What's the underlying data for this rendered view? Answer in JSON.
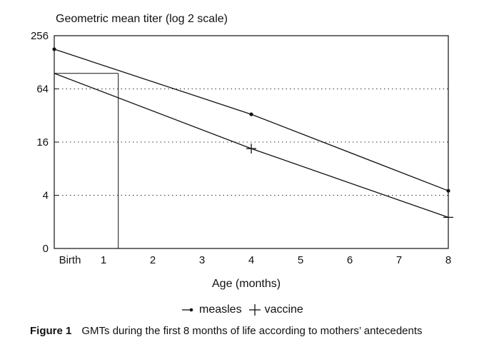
{
  "chart_data": {
    "type": "line",
    "title": "",
    "ylabel": "Geometric mean titer (log 2 scale)",
    "xlabel": "Age (months)",
    "x": [
      0,
      4,
      8
    ],
    "x_ticks": [
      {
        "value": 0,
        "label": "Birth"
      },
      {
        "value": 1,
        "label": "1"
      },
      {
        "value": 2,
        "label": "2"
      },
      {
        "value": 3,
        "label": "3"
      },
      {
        "value": 4,
        "label": "4"
      },
      {
        "value": 5,
        "label": "5"
      },
      {
        "value": 6,
        "label": "6"
      },
      {
        "value": 7,
        "label": "7"
      },
      {
        "value": 8,
        "label": "8"
      }
    ],
    "y_scale": "log2",
    "y_ticks": [
      {
        "value": 1,
        "label": "0"
      },
      {
        "value": 4,
        "label": "4"
      },
      {
        "value": 16,
        "label": "16"
      },
      {
        "value": 64,
        "label": "64"
      },
      {
        "value": 256,
        "label": "256"
      }
    ],
    "xlim": [
      0,
      8
    ],
    "ylim": [
      1,
      256
    ],
    "gridlines_at": [
      4,
      16,
      64
    ],
    "series": [
      {
        "name": "measles",
        "x": [
          0,
          4,
          8
        ],
        "values": [
          180,
          33,
          4.5
        ],
        "marker": "dot"
      },
      {
        "name": "vaccine",
        "x": [
          0,
          4,
          8
        ],
        "values": [
          96,
          13.5,
          2.25
        ],
        "marker": "plus"
      }
    ],
    "reference": {
      "x": 1.3,
      "y": 96
    }
  },
  "legend": {
    "items": [
      {
        "label": "measles"
      },
      {
        "label": "vaccine"
      }
    ]
  },
  "caption": {
    "label": "Figure 1",
    "text": "GMTs during the first 8 months of life according to mothers’ antecedents"
  }
}
